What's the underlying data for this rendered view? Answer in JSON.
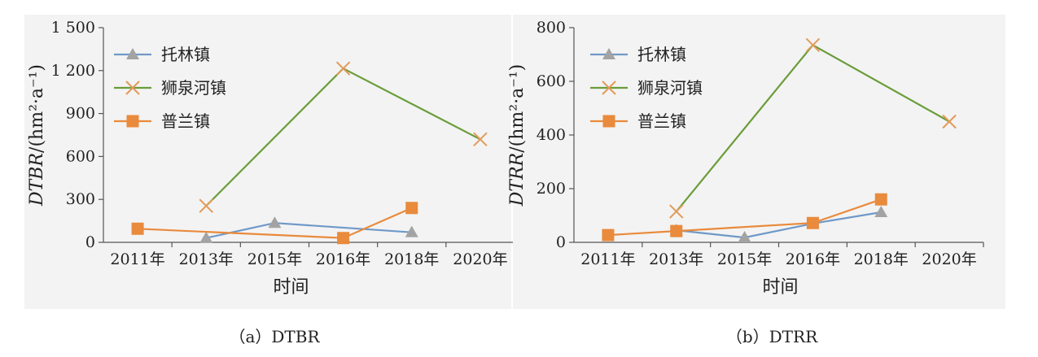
{
  "chart_data": [
    {
      "type": "line",
      "caption": "（a）DTBR",
      "ylabel_italic": "DTBR",
      "ylabel_unit": "/(hm²·a⁻¹)",
      "xlabel": "时间",
      "categories": [
        "2011年",
        "2013年",
        "2015年",
        "2016年",
        "2018年",
        "2020年"
      ],
      "ylim": [
        0,
        1500
      ],
      "yticks": [
        0,
        300,
        600,
        900,
        1200,
        1500
      ],
      "ytick_labels": [
        "0",
        "300",
        "600",
        "900",
        "1 200",
        "1 500"
      ],
      "grid": false,
      "legend_position": "top-left",
      "series": [
        {
          "name": "托林镇",
          "color": "#6f99c8",
          "marker": "triangle",
          "values": [
            null,
            30,
            135,
            null,
            70,
            null
          ]
        },
        {
          "name": "狮泉河镇",
          "color": "#6a9d3a",
          "marker_color": "#e39a5a",
          "marker": "x",
          "values": [
            null,
            255,
            null,
            1215,
            null,
            720
          ]
        },
        {
          "name": "普兰镇",
          "color": "#e98a3c",
          "marker": "square",
          "values": [
            95,
            null,
            null,
            30,
            240,
            null
          ]
        }
      ]
    },
    {
      "type": "line",
      "caption": "（b）DTRR",
      "ylabel_italic": "DTRR",
      "ylabel_unit": "/(hm²·a⁻¹)",
      "xlabel": "时间",
      "categories": [
        "2011年",
        "2013年",
        "2015年",
        "2016年",
        "2018年",
        "2020年"
      ],
      "ylim": [
        0,
        800
      ],
      "yticks": [
        0,
        200,
        400,
        600,
        800
      ],
      "ytick_labels": [
        "0",
        "200",
        "400",
        "600",
        "800"
      ],
      "grid": false,
      "legend_position": "top-left",
      "series": [
        {
          "name": "托林镇",
          "color": "#6f99c8",
          "marker": "triangle",
          "values": [
            null,
            45,
            18,
            70,
            112,
            null
          ]
        },
        {
          "name": "狮泉河镇",
          "color": "#6a9d3a",
          "marker_color": "#e39a5a",
          "marker": "x",
          "values": [
            null,
            115,
            null,
            735,
            null,
            450
          ]
        },
        {
          "name": "普兰镇",
          "color": "#e98a3c",
          "marker": "square",
          "values": [
            27,
            42,
            null,
            72,
            160,
            null
          ]
        }
      ]
    }
  ]
}
